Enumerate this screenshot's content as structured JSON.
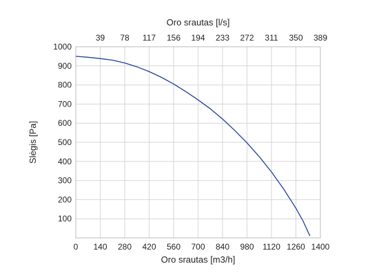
{
  "chart_data": {
    "type": "line",
    "title": "",
    "xlabel": "Oro srautas [m3/h]",
    "x2label": "Oro srautas [l/s]",
    "ylabel": "Slėgis [Pa]",
    "xlim": [
      0,
      1400
    ],
    "ylim": [
      0,
      1000
    ],
    "x_ticks": [
      0,
      140,
      280,
      420,
      560,
      700,
      840,
      980,
      1120,
      1260,
      1400
    ],
    "x_tick_labels": [
      "0",
      "140",
      "280",
      "420",
      "560",
      "700",
      "840",
      "980",
      "1120",
      "1260",
      "1400"
    ],
    "x2_ticks_m3h": [
      140,
      280,
      420,
      560,
      700,
      840,
      980,
      1120,
      1260,
      1400
    ],
    "x2_tick_labels": [
      "39",
      "78",
      "117",
      "156",
      "194",
      "233",
      "272",
      "311",
      "350",
      "389"
    ],
    "y_ticks": [
      100,
      200,
      300,
      400,
      500,
      600,
      700,
      800,
      900,
      1000
    ],
    "y_tick_labels": [
      "100",
      "200",
      "300",
      "400",
      "500",
      "600",
      "700",
      "800",
      "900",
      "1000"
    ],
    "grid": true,
    "line_color": "#1f3f99",
    "series": [
      {
        "x": [
          0,
          70,
          140,
          210,
          280,
          350,
          420,
          490,
          560,
          630,
          700,
          770,
          840,
          910,
          980,
          1050,
          1120,
          1190,
          1260,
          1300,
          1340
        ],
        "values": [
          950,
          945,
          938,
          930,
          915,
          895,
          870,
          840,
          805,
          765,
          722,
          675,
          622,
          562,
          497,
          425,
          345,
          255,
          155,
          90,
          10
        ]
      }
    ]
  }
}
